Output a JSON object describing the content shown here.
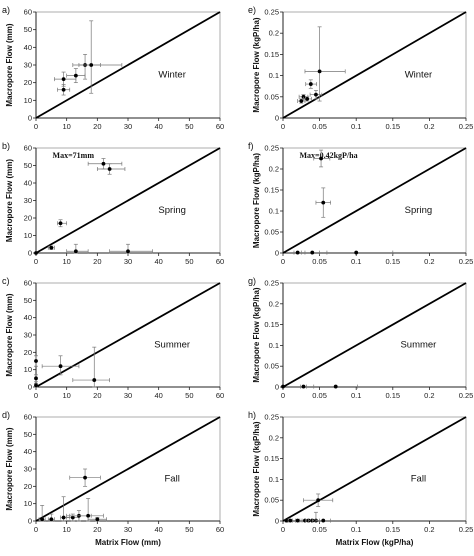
{
  "chart_data": [
    {
      "id": "a",
      "panel_label": "a)",
      "type": "scatter",
      "season": "Winter",
      "ylabel": "Macropore Flow (mm)",
      "xlabel": "",
      "xlim": [
        0,
        60
      ],
      "ylim": [
        0,
        60
      ],
      "xticks": [
        "0",
        "10",
        "20",
        "30",
        "40",
        "50",
        "60"
      ],
      "yticks": [
        "0",
        "10",
        "20",
        "30",
        "40",
        "50",
        "60"
      ],
      "annotation": "",
      "points": [
        {
          "x": 9,
          "y": 16,
          "xerr": [
            2,
            2
          ],
          "yerr": [
            3,
            3
          ]
        },
        {
          "x": 9,
          "y": 22,
          "xerr": [
            3,
            4
          ],
          "yerr": [
            4,
            4
          ]
        },
        {
          "x": 13,
          "y": 24,
          "xerr": [
            3,
            3
          ],
          "yerr": [
            4,
            4
          ]
        },
        {
          "x": 16,
          "y": 30,
          "xerr": [
            4,
            5
          ],
          "yerr": [
            8,
            6
          ]
        },
        {
          "x": 18,
          "y": 30,
          "xerr": [
            4,
            10
          ],
          "yerr": [
            16,
            25
          ]
        }
      ]
    },
    {
      "id": "b",
      "panel_label": "b)",
      "type": "scatter",
      "season": "Spring",
      "ylabel": "Macropore Flow (mm)",
      "xlabel": "",
      "xlim": [
        0,
        60
      ],
      "ylim": [
        0,
        60
      ],
      "xticks": [
        "0",
        "10",
        "20",
        "30",
        "40",
        "50",
        "60"
      ],
      "yticks": [
        "0",
        "10",
        "20",
        "30",
        "40",
        "50",
        "60"
      ],
      "annotation": "Max=71mm",
      "points": [
        {
          "x": 22,
          "y": 51,
          "xerr": [
            5,
            6
          ],
          "yerr": [
            3,
            3
          ]
        },
        {
          "x": 24,
          "y": 48,
          "xerr": [
            4,
            5
          ],
          "yerr": [
            3,
            3
          ]
        },
        {
          "x": 8,
          "y": 17,
          "xerr": [
            1,
            2
          ],
          "yerr": [
            2,
            2
          ]
        },
        {
          "x": 5,
          "y": 3,
          "xerr": [
            1,
            1
          ],
          "yerr": [
            1,
            1
          ]
        },
        {
          "x": 0,
          "y": 0,
          "xerr": [
            0,
            0
          ],
          "yerr": [
            0,
            0
          ]
        },
        {
          "x": 13,
          "y": 1,
          "xerr": [
            3,
            4
          ],
          "yerr": [
            1,
            4
          ]
        },
        {
          "x": 30,
          "y": 1,
          "xerr": [
            6,
            8
          ],
          "yerr": [
            1,
            4
          ]
        }
      ]
    },
    {
      "id": "c",
      "panel_label": "c)",
      "type": "scatter",
      "season": "Summer",
      "ylabel": "Macropore Flow (mm)",
      "xlabel": "",
      "xlim": [
        0,
        60
      ],
      "ylim": [
        0,
        60
      ],
      "xticks": [
        "0",
        "10",
        "20",
        "30",
        "40",
        "50",
        "60"
      ],
      "yticks": [
        "0",
        "10",
        "20",
        "30",
        "40",
        "50",
        "60"
      ],
      "annotation": "",
      "points": [
        {
          "x": 0,
          "y": 15,
          "xerr": [
            0,
            0
          ],
          "yerr": [
            3,
            3
          ]
        },
        {
          "x": 0,
          "y": 5,
          "xerr": [
            0,
            0
          ],
          "yerr": [
            2,
            2
          ]
        },
        {
          "x": 0,
          "y": 1,
          "xerr": [
            0,
            0
          ],
          "yerr": [
            1,
            1
          ]
        },
        {
          "x": 8,
          "y": 12,
          "xerr": [
            6,
            6
          ],
          "yerr": [
            5,
            6
          ]
        },
        {
          "x": 19,
          "y": 4,
          "xerr": [
            7,
            5
          ],
          "yerr": [
            4,
            19
          ]
        }
      ]
    },
    {
      "id": "d",
      "panel_label": "d)",
      "type": "scatter",
      "season": "Fall",
      "ylabel": "Macropore Flow (mm)",
      "xlabel": "Matrix Flow (mm)",
      "xlim": [
        0,
        60
      ],
      "ylim": [
        0,
        60
      ],
      "xticks": [
        "0",
        "10",
        "20",
        "30",
        "40",
        "50",
        "60"
      ],
      "yticks": [
        "0",
        "10",
        "20",
        "30",
        "40",
        "50",
        "60"
      ],
      "annotation": "",
      "points": [
        {
          "x": 2,
          "y": 1,
          "xerr": [
            1,
            1
          ],
          "yerr": [
            1,
            8
          ]
        },
        {
          "x": 5,
          "y": 1,
          "xerr": [
            1,
            1
          ],
          "yerr": [
            1,
            3
          ]
        },
        {
          "x": 9,
          "y": 2,
          "xerr": [
            1,
            2
          ],
          "yerr": [
            2,
            12
          ]
        },
        {
          "x": 12,
          "y": 2,
          "xerr": [
            2,
            2
          ],
          "yerr": [
            2,
            2
          ]
        },
        {
          "x": 14,
          "y": 3,
          "xerr": [
            4,
            4
          ],
          "yerr": [
            3,
            3
          ]
        },
        {
          "x": 16,
          "y": 25,
          "xerr": [
            5,
            5
          ],
          "yerr": [
            5,
            5
          ]
        },
        {
          "x": 17,
          "y": 3,
          "xerr": [
            6,
            5
          ],
          "yerr": [
            3,
            10
          ]
        },
        {
          "x": 20,
          "y": 1,
          "xerr": [
            3,
            3
          ],
          "yerr": [
            1,
            1
          ]
        }
      ]
    },
    {
      "id": "e",
      "panel_label": "e)",
      "type": "scatter",
      "season": "Winter",
      "ylabel": "Macropore Flow (kgP/ha)",
      "xlabel": "",
      "xlim": [
        0,
        0.25
      ],
      "ylim": [
        0,
        0.25
      ],
      "xticks": [
        "0",
        "0.05",
        "0.1",
        "0.15",
        "0.2",
        "0.25"
      ],
      "yticks": [
        "0",
        "0.05",
        "0.1",
        "0.15",
        "0.2",
        "0.25"
      ],
      "annotation": "",
      "points": [
        {
          "x": 0.025,
          "y": 0.04,
          "xerr": [
            0.005,
            0.005
          ],
          "yerr": [
            0.005,
            0.005
          ]
        },
        {
          "x": 0.028,
          "y": 0.05,
          "xerr": [
            0.006,
            0.006
          ],
          "yerr": [
            0.005,
            0.005
          ]
        },
        {
          "x": 0.033,
          "y": 0.045,
          "xerr": [
            0.005,
            0.006
          ],
          "yerr": [
            0.005,
            0.005
          ]
        },
        {
          "x": 0.038,
          "y": 0.08,
          "xerr": [
            0.007,
            0.008
          ],
          "yerr": [
            0.01,
            0.01
          ]
        },
        {
          "x": 0.045,
          "y": 0.055,
          "xerr": [
            0.008,
            0.008
          ],
          "yerr": [
            0.01,
            0.01
          ]
        },
        {
          "x": 0.05,
          "y": 0.11,
          "xerr": [
            0.02,
            0.035
          ],
          "yerr": [
            0.07,
            0.105
          ]
        }
      ]
    },
    {
      "id": "f",
      "panel_label": "f)",
      "type": "scatter",
      "season": "Spring",
      "ylabel": "Macropore Flow (kgP/ha)",
      "xlabel": "",
      "xlim": [
        0,
        0.25
      ],
      "ylim": [
        0,
        0.25
      ],
      "xticks": [
        "0",
        "0.05",
        "0.1",
        "0.15",
        "0.2",
        "0.25"
      ],
      "yticks": [
        "0",
        "0.05",
        "0.1",
        "0.15",
        "0.2",
        "0.25"
      ],
      "annotation": "Max=0.42kgP/ha",
      "points": [
        {
          "x": 0.052,
          "y": 0.225,
          "xerr": [
            0.01,
            0.012
          ],
          "yerr": [
            0.02,
            0.02
          ]
        },
        {
          "x": 0.055,
          "y": 0.12,
          "xerr": [
            0.01,
            0.01
          ],
          "yerr": [
            0.035,
            0.035
          ]
        },
        {
          "x": 0.02,
          "y": 0.001,
          "xerr": [
            0.005,
            0.005
          ],
          "yerr": [
            0,
            0
          ]
        },
        {
          "x": 0.04,
          "y": 0.001,
          "xerr": [
            0.01,
            0.01
          ],
          "yerr": [
            0,
            0
          ]
        },
        {
          "x": 0.1,
          "y": 0.001,
          "xerr": [
            0.04,
            0.05
          ],
          "yerr": [
            0,
            0
          ]
        }
      ]
    },
    {
      "id": "g",
      "panel_label": "g)",
      "type": "scatter",
      "season": "Summer",
      "ylabel": "Macropore Flow (kgP/ha)",
      "xlabel": "",
      "xlim": [
        0,
        0.25
      ],
      "ylim": [
        0,
        0.25
      ],
      "xticks": [
        "0",
        "0.05",
        "0.1",
        "0.15",
        "0.2",
        "0.25"
      ],
      "yticks": [
        "0",
        "0.05",
        "0.1",
        "0.15",
        "0.2",
        "0.25"
      ],
      "annotation": "",
      "points": [
        {
          "x": 0.0,
          "y": 0.001,
          "xerr": [
            0,
            0
          ],
          "yerr": [
            0,
            0
          ]
        },
        {
          "x": 0.028,
          "y": 0.001,
          "xerr": [
            0.004,
            0.004
          ],
          "yerr": [
            0,
            0
          ]
        },
        {
          "x": 0.072,
          "y": 0.001,
          "xerr": [
            0.03,
            0.03
          ],
          "yerr": [
            0,
            0
          ]
        }
      ]
    },
    {
      "id": "h",
      "panel_label": "h)",
      "type": "scatter",
      "season": "Fall",
      "ylabel": "Macropore Flow (kgP/ha)",
      "xlabel": "Matrix Flow (kgP/ha)",
      "xlim": [
        0,
        0.25
      ],
      "ylim": [
        0,
        0.25
      ],
      "xticks": [
        "0",
        "0.05",
        "0.1",
        "0.15",
        "0.2",
        "0.25"
      ],
      "yticks": [
        "0",
        "0.05",
        "0.1",
        "0.15",
        "0.2",
        "0.25"
      ],
      "annotation": "",
      "points": [
        {
          "x": 0.005,
          "y": 0.001,
          "xerr": [
            0.002,
            0.002
          ],
          "yerr": [
            0,
            0
          ]
        },
        {
          "x": 0.01,
          "y": 0.001,
          "xerr": [
            0.003,
            0.003
          ],
          "yerr": [
            0,
            0
          ]
        },
        {
          "x": 0.02,
          "y": 0.001,
          "xerr": [
            0.003,
            0.003
          ],
          "yerr": [
            0,
            0
          ]
        },
        {
          "x": 0.03,
          "y": 0.001,
          "xerr": [
            0.004,
            0.004
          ],
          "yerr": [
            0,
            0
          ]
        },
        {
          "x": 0.035,
          "y": 0.001,
          "xerr": [
            0.004,
            0.004
          ],
          "yerr": [
            0,
            0
          ]
        },
        {
          "x": 0.04,
          "y": 0.001,
          "xerr": [
            0.005,
            0.005
          ],
          "yerr": [
            0,
            0
          ]
        },
        {
          "x": 0.045,
          "y": 0.001,
          "xerr": [
            0.005,
            0.005
          ],
          "yerr": [
            0,
            0.02
          ]
        },
        {
          "x": 0.048,
          "y": 0.05,
          "xerr": [
            0.02,
            0.02
          ],
          "yerr": [
            0.015,
            0.015
          ]
        },
        {
          "x": 0.055,
          "y": 0.001,
          "xerr": [
            0.01,
            0.01
          ],
          "yerr": [
            0,
            0
          ]
        }
      ]
    }
  ]
}
